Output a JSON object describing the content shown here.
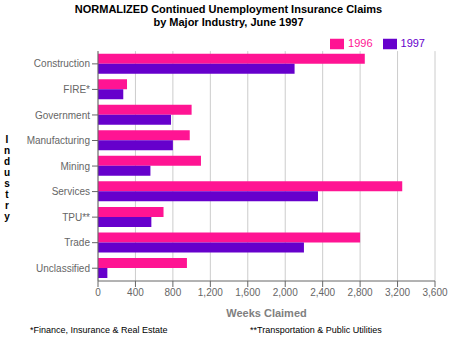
{
  "chart_data": {
    "type": "bar",
    "orientation": "horizontal",
    "title": "NORMALIZED Continued Unemployment Insurance Claims\nby Major Industry, June 1997",
    "xlabel": "Weeks Claimed",
    "ylabel": "I\nn\nd\nu\ns\nt\nr\ny",
    "categories": [
      "Construction",
      "FIRE*",
      "Government",
      "Manufacturing",
      "Mining",
      "Services",
      "TPU**",
      "Trade",
      "Unclassified"
    ],
    "series": [
      {
        "name": "1996",
        "color": "#FF1493",
        "values": [
          2850,
          310,
          1000,
          980,
          1100,
          3250,
          700,
          2800,
          950
        ]
      },
      {
        "name": "1997",
        "color": "#6600CC",
        "values": [
          2100,
          270,
          780,
          800,
          560,
          2350,
          570,
          2200,
          100
        ]
      }
    ],
    "xlim": [
      0,
      3600
    ],
    "xticks": [
      0,
      400,
      800,
      {
        "value": 1200,
        "label": "1,200"
      },
      {
        "value": 1600,
        "label": "1,600"
      },
      {
        "value": 2000,
        "label": "2,000"
      },
      {
        "value": 2400,
        "label": "2,400"
      },
      {
        "value": 2800,
        "label": "2,800"
      },
      {
        "value": 3200,
        "label": "3,200"
      },
      {
        "value": 3600,
        "label": "3,600"
      }
    ],
    "grid": true,
    "legend": "upper right",
    "annotations": [
      "*Finance, Insurance & Real Estate",
      "**Transportation & Public Utilities"
    ]
  }
}
